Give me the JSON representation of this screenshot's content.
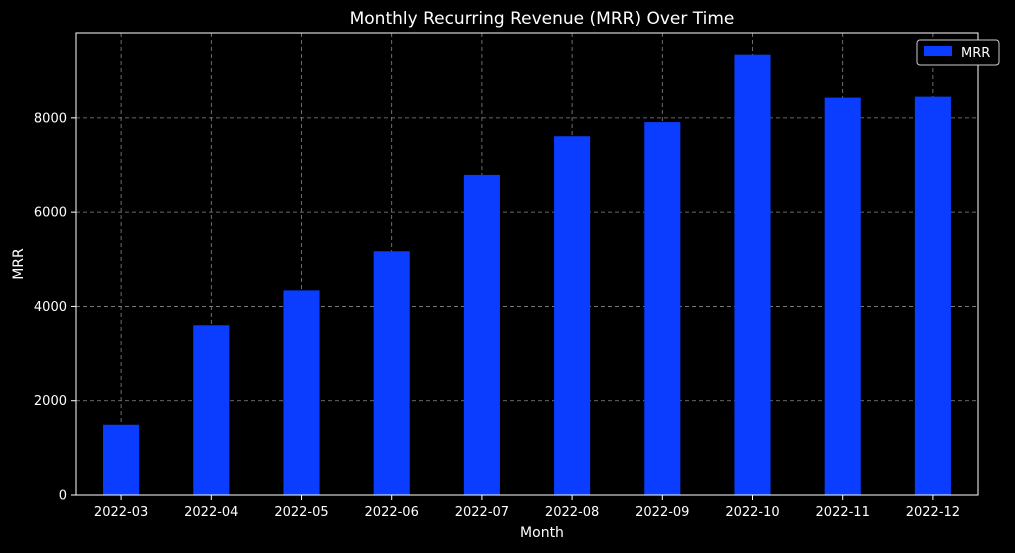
{
  "chart_data": {
    "type": "bar",
    "title": "Monthly Recurring Revenue (MRR) Over Time",
    "xlabel": "Month",
    "ylabel": "MRR",
    "categories": [
      "2022-03",
      "2022-04",
      "2022-05",
      "2022-06",
      "2022-07",
      "2022-08",
      "2022-09",
      "2022-10",
      "2022-11",
      "2022-12"
    ],
    "series": [
      {
        "name": "MRR",
        "values": [
          1490,
          3600,
          4340,
          5170,
          6790,
          7610,
          7910,
          9340,
          8430,
          8450
        ],
        "color": "#0a3dff"
      }
    ],
    "ylim": [
      0,
      9800
    ],
    "yticks": [
      0,
      2000,
      4000,
      6000,
      8000
    ],
    "grid": true,
    "legend_position": "top-right",
    "colors": {
      "background": "#000000",
      "axes": "#ffffff",
      "grid": "#888888",
      "text": "#ffffff",
      "bar": "#0a3dff"
    }
  }
}
